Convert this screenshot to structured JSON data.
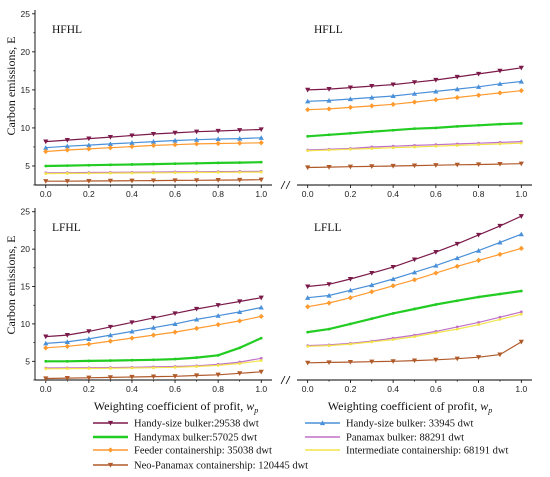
{
  "chart_data": {
    "type": "line",
    "ylabel": "Carbon emissions, E",
    "xlabel_text": "Weighting coefficient of profit, ",
    "xlabel_var": "w",
    "xlabel_sub": "p",
    "xticks": [
      "0.0",
      "0.2",
      "0.4",
      "0.6",
      "0.8",
      "1.0"
    ],
    "yticks": [
      "5",
      "10",
      "15",
      "20",
      "25"
    ],
    "x": [
      0.0,
      0.1,
      0.2,
      0.3,
      0.4,
      0.5,
      0.6,
      0.7,
      0.8,
      0.9,
      1.0
    ],
    "ylim": [
      2.5,
      25.5
    ],
    "xlim": [
      -0.05,
      1.05
    ],
    "legend": [
      {
        "name": "Handy-size bulker:29538 dwt",
        "color": "#7b1a4a",
        "marker": "tri-down"
      },
      {
        "name": "Handy-size bulker: 33945 dwt",
        "color": "#4a90d9",
        "marker": "tri-up"
      },
      {
        "name": "Handymax bulker:57025 dwt",
        "color": "#22cc22",
        "marker": "none"
      },
      {
        "name": "Panamax bulker: 88291 dwt",
        "color": "#c070c8",
        "marker": "none"
      },
      {
        "name": "Feeder containership: 35038 dwt",
        "color": "#ff9a2e",
        "marker": "diamond"
      },
      {
        "name": "Intermediate containership: 68191 dwt",
        "color": "#f2e44a",
        "marker": "none"
      },
      {
        "name": "Neo-Panamax containership: 120445 dwt",
        "color": "#b05a2a",
        "marker": "tri-down"
      }
    ],
    "panels": [
      {
        "title": "HFHL",
        "series": [
          [
            8.2,
            8.4,
            8.6,
            8.8,
            9.0,
            9.2,
            9.35,
            9.5,
            9.6,
            9.7,
            9.8
          ],
          [
            7.4,
            7.6,
            7.75,
            7.9,
            8.05,
            8.2,
            8.35,
            8.45,
            8.55,
            8.6,
            8.7
          ],
          [
            5.0,
            5.05,
            5.1,
            5.15,
            5.2,
            5.25,
            5.3,
            5.35,
            5.4,
            5.45,
            5.5
          ],
          [
            4.1,
            4.12,
            4.14,
            4.16,
            4.18,
            4.2,
            4.22,
            4.24,
            4.26,
            4.28,
            4.3
          ],
          [
            6.9,
            7.1,
            7.25,
            7.4,
            7.55,
            7.7,
            7.8,
            7.9,
            7.95,
            8.0,
            8.05
          ],
          [
            4.0,
            4.02,
            4.04,
            4.06,
            4.08,
            4.1,
            4.12,
            4.14,
            4.16,
            4.18,
            4.2
          ],
          [
            3.0,
            3.0,
            3.02,
            3.04,
            3.06,
            3.08,
            3.1,
            3.12,
            3.14,
            3.16,
            3.2
          ]
        ]
      },
      {
        "title": "HFLL",
        "series": [
          [
            15.0,
            15.1,
            15.3,
            15.5,
            15.7,
            16.0,
            16.3,
            16.7,
            17.1,
            17.5,
            17.9
          ],
          [
            13.5,
            13.6,
            13.8,
            14.0,
            14.2,
            14.5,
            14.8,
            15.1,
            15.4,
            15.8,
            16.1
          ],
          [
            8.9,
            9.1,
            9.3,
            9.5,
            9.7,
            9.9,
            10.0,
            10.2,
            10.35,
            10.5,
            10.6
          ],
          [
            7.1,
            7.2,
            7.3,
            7.5,
            7.6,
            7.7,
            7.8,
            7.9,
            8.0,
            8.1,
            8.2
          ],
          [
            12.4,
            12.5,
            12.7,
            12.9,
            13.1,
            13.4,
            13.7,
            14.0,
            14.3,
            14.6,
            14.9
          ],
          [
            7.0,
            7.1,
            7.2,
            7.3,
            7.4,
            7.5,
            7.6,
            7.7,
            7.8,
            7.9,
            8.0
          ],
          [
            4.8,
            4.85,
            4.9,
            4.95,
            5.0,
            5.05,
            5.1,
            5.15,
            5.2,
            5.25,
            5.3
          ]
        ]
      },
      {
        "title": "LFHL",
        "series": [
          [
            8.3,
            8.5,
            9.0,
            9.6,
            10.2,
            10.8,
            11.4,
            12.0,
            12.5,
            13.0,
            13.5
          ],
          [
            7.4,
            7.6,
            8.0,
            8.5,
            9.0,
            9.5,
            10.0,
            10.6,
            11.1,
            11.6,
            12.2
          ],
          [
            5.0,
            5.0,
            5.05,
            5.1,
            5.15,
            5.2,
            5.3,
            5.5,
            5.8,
            6.8,
            8.1
          ],
          [
            4.1,
            4.12,
            4.14,
            4.16,
            4.2,
            4.25,
            4.3,
            4.4,
            4.6,
            4.9,
            5.4
          ],
          [
            6.8,
            7.0,
            7.3,
            7.7,
            8.1,
            8.5,
            8.9,
            9.4,
            9.9,
            10.4,
            11.0
          ],
          [
            4.0,
            4.02,
            4.04,
            4.06,
            4.1,
            4.14,
            4.2,
            4.3,
            4.45,
            4.7,
            5.1
          ],
          [
            2.7,
            2.75,
            2.8,
            2.85,
            2.9,
            2.95,
            3.0,
            3.1,
            3.2,
            3.4,
            3.6
          ]
        ]
      },
      {
        "title": "LFLL",
        "series": [
          [
            15.0,
            15.3,
            16.0,
            16.8,
            17.6,
            18.6,
            19.6,
            20.7,
            21.9,
            23.1,
            24.4
          ],
          [
            13.5,
            13.8,
            14.5,
            15.2,
            16.0,
            16.9,
            17.8,
            18.8,
            19.8,
            20.9,
            22.0
          ],
          [
            8.9,
            9.3,
            10.0,
            10.7,
            11.4,
            12.0,
            12.6,
            13.1,
            13.6,
            14.0,
            14.4
          ],
          [
            7.1,
            7.2,
            7.4,
            7.7,
            8.1,
            8.5,
            9.0,
            9.6,
            10.2,
            10.9,
            11.6
          ],
          [
            12.3,
            12.8,
            13.5,
            14.3,
            15.1,
            15.9,
            16.8,
            17.7,
            18.5,
            19.3,
            20.1
          ],
          [
            7.0,
            7.1,
            7.3,
            7.6,
            7.9,
            8.3,
            8.8,
            9.3,
            9.9,
            10.6,
            11.3
          ],
          [
            4.8,
            4.85,
            4.9,
            4.95,
            5.0,
            5.1,
            5.2,
            5.35,
            5.55,
            5.9,
            7.6
          ]
        ]
      }
    ]
  }
}
